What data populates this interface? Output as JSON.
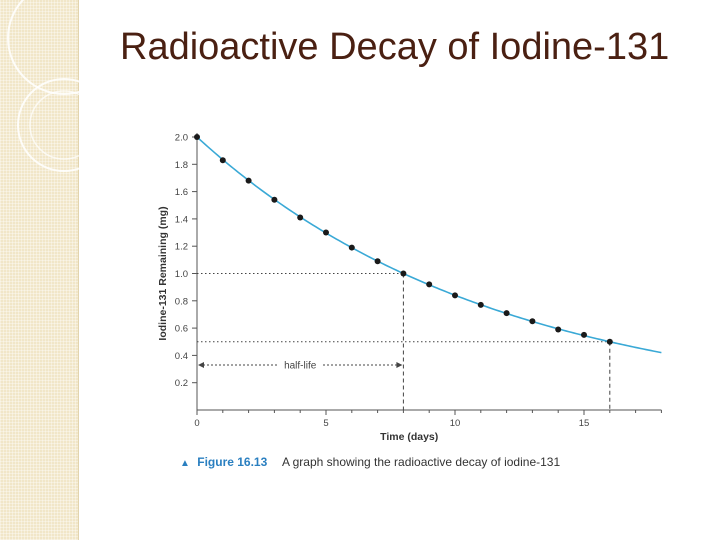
{
  "slide": {
    "title": "Radioactive Decay of Iodine-131"
  },
  "figure": {
    "label": "Figure 16.13",
    "caption": "A graph showing the radioactive decay of iodine-131",
    "marker_icon": "triangle-up-icon"
  },
  "colors": {
    "title": "#4a2012",
    "curve": "#3aa9d6",
    "points": "#1a1a1a",
    "axis": "#555555",
    "accent": "#2a7fc0",
    "side_strip": "#f1e6c8"
  },
  "chart_data": {
    "type": "line",
    "title": "",
    "xlabel": "Time (days)",
    "ylabel": "Iodine-131 Remaining (mg)",
    "xlim": [
      0,
      18
    ],
    "ylim": [
      0,
      2.0
    ],
    "x_ticks": [
      0,
      5,
      10,
      15
    ],
    "y_ticks": [
      0.2,
      0.4,
      0.6,
      0.8,
      1.0,
      1.2,
      1.4,
      1.6,
      1.8,
      2.0
    ],
    "y_tick_labels": [
      "0.2",
      "0.4",
      "0.6",
      "0.8",
      "1.0",
      "1.2",
      "1.4",
      "1.6",
      "1.8",
      "2.0"
    ],
    "curve": {
      "name": "decay curve",
      "initial": 2.0,
      "half_life": 8,
      "x_range": [
        0,
        18
      ]
    },
    "points": {
      "x": [
        0,
        1,
        2,
        3,
        4,
        5,
        6,
        7,
        8,
        9,
        10,
        11,
        12,
        13,
        14,
        15,
        16
      ],
      "y": [
        2.0,
        1.83,
        1.68,
        1.54,
        1.41,
        1.3,
        1.19,
        1.09,
        1.0,
        0.92,
        0.84,
        0.77,
        0.71,
        0.65,
        0.59,
        0.55,
        0.5
      ]
    },
    "guides": [
      {
        "x": 8,
        "y": 1.0
      },
      {
        "x": 16,
        "y": 0.5
      }
    ],
    "annotation": {
      "text": "half-life",
      "from_x": 0,
      "to_x": 8,
      "y": 0.33
    }
  }
}
